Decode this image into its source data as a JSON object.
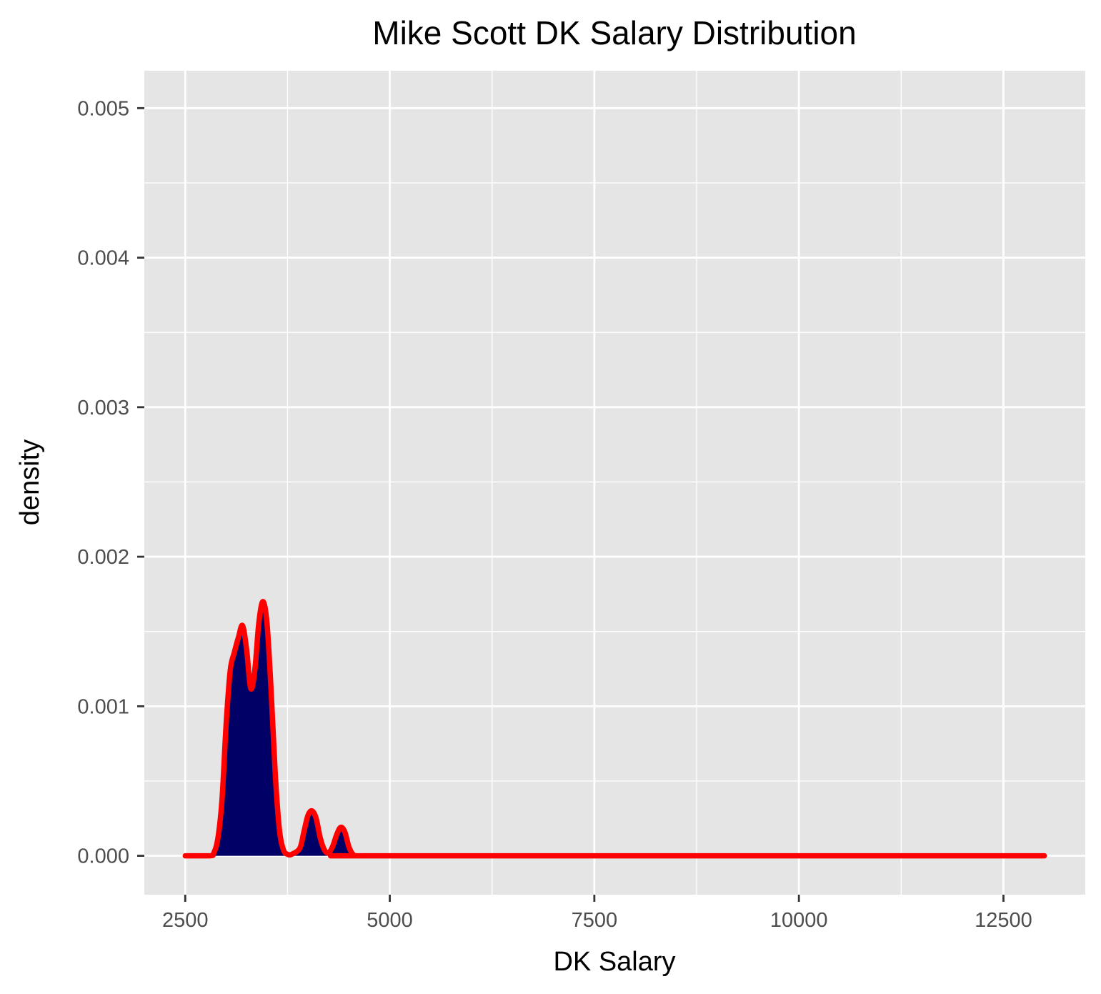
{
  "colors": {
    "panel_background": "#e5e5e5",
    "grid": "#ffffff",
    "fill": "#000066",
    "line": "#ff0000",
    "tick": "#333333",
    "tick_text": "#4d4d4d"
  },
  "chart_data": {
    "type": "area",
    "title": "Mike Scott DK Salary Distribution",
    "xlabel": "DK Salary",
    "ylabel": "density",
    "xlim": [
      2000,
      13500
    ],
    "ylim": [
      -0.00026,
      0.00525
    ],
    "x_ticks": [
      2500,
      5000,
      7500,
      10000,
      12500
    ],
    "x_tick_labels": [
      "2500",
      "5000",
      "7500",
      "10000",
      "12500"
    ],
    "y_ticks": [
      0,
      0.001,
      0.002,
      0.003,
      0.004,
      0.005
    ],
    "y_tick_labels": [
      "0.000",
      "0.001",
      "0.002",
      "0.003",
      "0.004",
      "0.005"
    ],
    "grid": true,
    "legend": false,
    "series": [
      {
        "x": [
          2500,
          2800,
          2850,
          2900,
          2950,
          3000,
          3050,
          3100,
          3150,
          3200,
          3250,
          3300,
          3350,
          3400,
          3450,
          3500,
          3550,
          3600,
          3650,
          3700,
          3750,
          3800,
          3900,
          3950,
          4000,
          4050,
          4100,
          4150,
          4200,
          4250,
          4300,
          4350,
          4400,
          4450,
          4500,
          4550,
          4600,
          5000,
          13000
        ],
        "y": [
          0,
          0,
          2e-05,
          0.00012,
          0.00038,
          0.00088,
          0.00124,
          0.00136,
          0.00146,
          0.00154,
          0.00138,
          0.00112,
          0.00124,
          0.00156,
          0.0017,
          0.00155,
          0.0011,
          0.00055,
          0.00018,
          4e-05,
          1e-05,
          1e-05,
          5e-05,
          0.00016,
          0.00027,
          0.0003,
          0.00025,
          0.00012,
          4e-05,
          2e-05,
          6e-05,
          0.00014,
          0.00019,
          0.00016,
          6e-05,
          1e-05,
          0,
          0,
          0
        ]
      }
    ]
  }
}
